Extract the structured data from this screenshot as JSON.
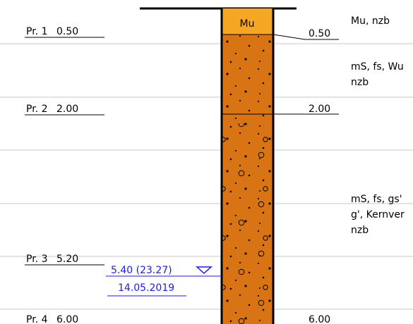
{
  "column": {
    "top_label": "Mu",
    "soil_color": "#d97414",
    "topsoil_color": "#f5a623"
  },
  "samples": [
    {
      "id": "Pr. 1",
      "depth": "0.50"
    },
    {
      "id": "Pr. 2",
      "depth": "2.00"
    },
    {
      "id": "Pr. 3",
      "depth": "5.20"
    },
    {
      "id": "Pr. 4",
      "depth": "6.00"
    }
  ],
  "layer_depths": [
    "0.50",
    "2.00",
    "6.00"
  ],
  "descriptions": [
    {
      "lines": [
        "Mu, nzb"
      ]
    },
    {
      "lines": [
        "mS, fs, Wu",
        "nzb"
      ]
    },
    {
      "lines": [
        "mS, fs, gs'",
        "g', Kernver",
        "nzb"
      ]
    }
  ],
  "groundwater": {
    "level": "5.40 (23.27)",
    "date": "14.05.2019",
    "color": "#1a1aff"
  }
}
